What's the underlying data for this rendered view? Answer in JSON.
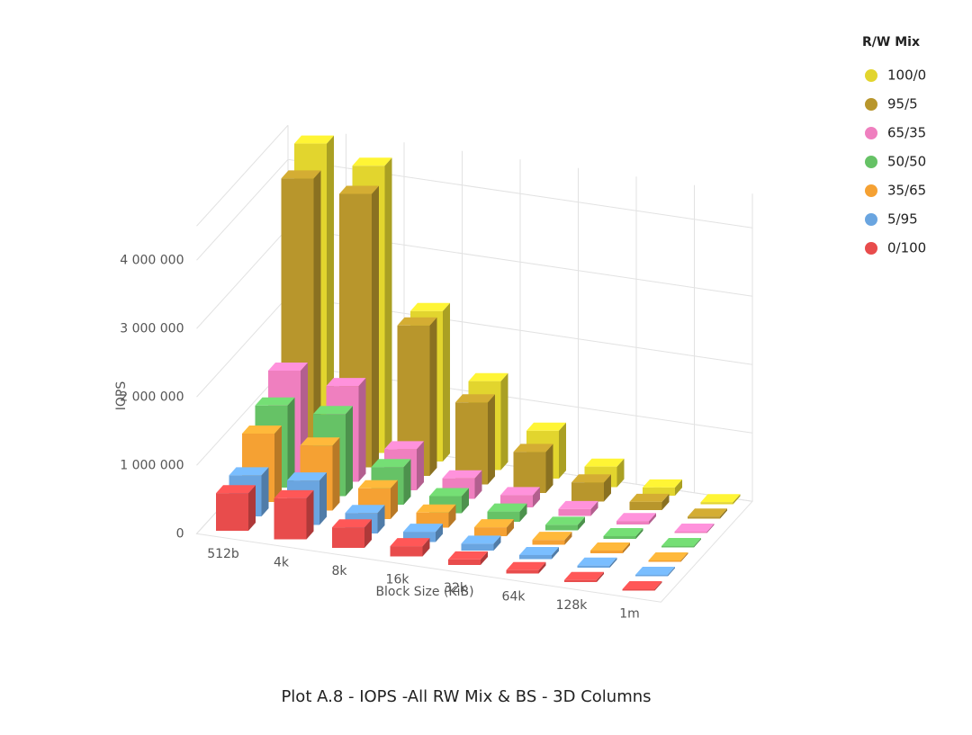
{
  "chart_data": {
    "type": "bar3d",
    "title": "Plot A.8 - IOPS -All RW Mix & BS - 3D Columns",
    "x_label": "Block Size (KiB)",
    "y_label": "IOPS",
    "legend_title": "R/W Mix",
    "legend": "top-right",
    "grid": true,
    "categories": [
      "512b",
      "4k",
      "8k",
      "16k",
      "32k",
      "64k",
      "128k",
      "1m"
    ],
    "ylim": [
      0,
      4500000
    ],
    "yticks": [
      {
        "value": 0,
        "label": "0"
      },
      {
        "value": 1000000,
        "label": "1 000 000"
      },
      {
        "value": 2000000,
        "label": "2 000 000"
      },
      {
        "value": 3000000,
        "label": "3 000 000"
      },
      {
        "value": 4000000,
        "label": "4 000 000"
      }
    ],
    "series": [
      {
        "name": "100/0",
        "color": "#e2d52e",
        "values": [
          4400000,
          4200000,
          2200000,
          1300000,
          700000,
          300000,
          120000,
          30000
        ]
      },
      {
        "name": "95/5",
        "color": "#b8962c",
        "values": [
          4100000,
          4000000,
          2200000,
          1200000,
          600000,
          280000,
          120000,
          30000
        ]
      },
      {
        "name": "65/35",
        "color": "#ef7fbf",
        "values": [
          1500000,
          1400000,
          600000,
          300000,
          180000,
          100000,
          50000,
          20000
        ]
      },
      {
        "name": "50/50",
        "color": "#66c266",
        "values": [
          1200000,
          1200000,
          550000,
          250000,
          150000,
          80000,
          40000,
          20000
        ]
      },
      {
        "name": "35/65",
        "color": "#f5a133",
        "values": [
          1000000,
          950000,
          450000,
          220000,
          130000,
          70000,
          40000,
          20000
        ]
      },
      {
        "name": "5/95",
        "color": "#6aa5e0",
        "values": [
          600000,
          650000,
          300000,
          150000,
          100000,
          60000,
          30000,
          20000
        ]
      },
      {
        "name": "0/100",
        "color": "#e84c4c",
        "values": [
          550000,
          600000,
          300000,
          150000,
          80000,
          50000,
          30000,
          20000
        ]
      }
    ]
  }
}
